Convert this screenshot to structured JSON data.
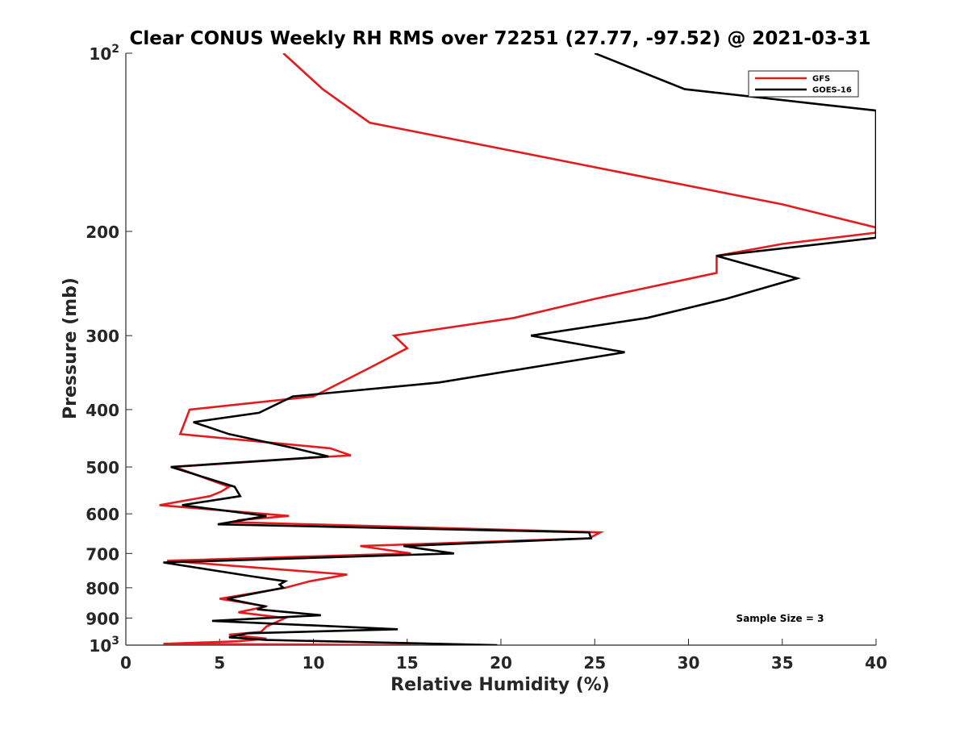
{
  "chart_data": {
    "type": "line",
    "title": "Clear CONUS Weekly RH RMS over 72251 (27.77, -97.52) @ 2021-03-31",
    "xlabel": "Relative Humidity (%)",
    "ylabel": "Pressure (mb)",
    "xlim": [
      0,
      40
    ],
    "ylim": [
      100,
      1000
    ],
    "y_scale": "log",
    "y_reversed": true,
    "grid": false,
    "legend_position": "top-right",
    "x_ticks": [
      0,
      5,
      10,
      15,
      20,
      25,
      30,
      35,
      40
    ],
    "x_tick_labels": [
      "0",
      "5",
      "10",
      "15",
      "20",
      "25",
      "30",
      "35",
      "40"
    ],
    "y_ticks": [
      {
        "value": 100,
        "base": "10",
        "exp": "2"
      },
      {
        "value": 200,
        "label": "200"
      },
      {
        "value": 300,
        "label": "300"
      },
      {
        "value": 400,
        "label": "400"
      },
      {
        "value": 500,
        "label": "500"
      },
      {
        "value": 600,
        "label": "600"
      },
      {
        "value": 700,
        "label": "700"
      },
      {
        "value": 800,
        "label": "800"
      },
      {
        "value": 900,
        "label": "900"
      },
      {
        "value": 1000,
        "base": "10",
        "exp": "3"
      }
    ],
    "annotation": "Sample Size = 3",
    "series": [
      {
        "name": "GFS",
        "color": "#e41a1c",
        "points": [
          [
            8.4,
            100
          ],
          [
            10.5,
            115
          ],
          [
            13.0,
            131
          ],
          [
            35.0,
            180
          ],
          [
            40.0,
            197
          ],
          [
            40.0,
            201
          ],
          [
            35.0,
            210
          ],
          [
            31.5,
            220
          ],
          [
            31.5,
            235
          ],
          [
            25.0,
            260
          ],
          [
            20.7,
            280
          ],
          [
            14.3,
            300
          ],
          [
            15.0,
            315
          ],
          [
            13.0,
            340
          ],
          [
            10.0,
            380
          ],
          [
            3.4,
            400
          ],
          [
            2.9,
            440
          ],
          [
            10.9,
            465
          ],
          [
            12.0,
            478
          ],
          [
            11.0,
            480
          ],
          [
            2.6,
            500
          ],
          [
            5.5,
            540
          ],
          [
            5.1,
            550
          ],
          [
            4.5,
            560
          ],
          [
            1.8,
            580
          ],
          [
            8.7,
            605
          ],
          [
            6.0,
            615
          ],
          [
            5.8,
            620
          ],
          [
            25.3,
            645
          ],
          [
            24.7,
            660
          ],
          [
            12.5,
            680
          ],
          [
            15.2,
            700
          ],
          [
            2.2,
            720
          ],
          [
            11.8,
            760
          ],
          [
            9.8,
            780
          ],
          [
            8.5,
            800
          ],
          [
            5.0,
            835
          ],
          [
            7.5,
            860
          ],
          [
            6.0,
            880
          ],
          [
            8.5,
            900
          ],
          [
            7.5,
            930
          ],
          [
            7.2,
            950
          ],
          [
            5.5,
            960
          ],
          [
            7.5,
            975
          ],
          [
            6.0,
            985
          ],
          [
            2.0,
            995
          ],
          [
            15.6,
            1000
          ]
        ]
      },
      {
        "name": "GOES-16",
        "color": "#000000",
        "points": [
          [
            25.0,
            100
          ],
          [
            29.8,
            115
          ],
          [
            40.0,
            125
          ],
          [
            40.0,
            205
          ],
          [
            31.5,
            220
          ],
          [
            35.8,
            240
          ],
          [
            32.0,
            260
          ],
          [
            27.8,
            280
          ],
          [
            21.6,
            300
          ],
          [
            26.6,
            320
          ],
          [
            16.7,
            360
          ],
          [
            8.9,
            380
          ],
          [
            7.1,
            405
          ],
          [
            3.6,
            420
          ],
          [
            5.5,
            440
          ],
          [
            9.0,
            465
          ],
          [
            10.8,
            480
          ],
          [
            2.4,
            500
          ],
          [
            5.8,
            540
          ],
          [
            6.1,
            560
          ],
          [
            3.0,
            580
          ],
          [
            7.5,
            605
          ],
          [
            4.9,
            625
          ],
          [
            24.7,
            645
          ],
          [
            24.8,
            660
          ],
          [
            14.8,
            680
          ],
          [
            17.5,
            700
          ],
          [
            2.0,
            725
          ],
          [
            6.7,
            765
          ],
          [
            8.5,
            780
          ],
          [
            8.2,
            790
          ],
          [
            8.4,
            800
          ],
          [
            5.4,
            835
          ],
          [
            7.4,
            860
          ],
          [
            7.0,
            870
          ],
          [
            10.4,
            890
          ],
          [
            4.6,
            910
          ],
          [
            14.5,
            940
          ],
          [
            6.5,
            955
          ],
          [
            5.5,
            970
          ],
          [
            7.5,
            980
          ],
          [
            19.8,
            1000
          ]
        ]
      }
    ]
  }
}
